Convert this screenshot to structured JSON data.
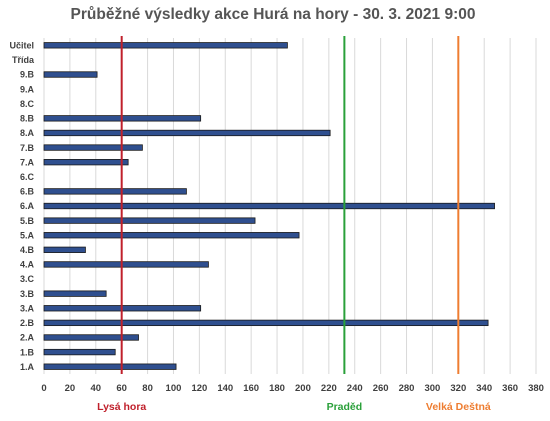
{
  "chart_data": {
    "type": "bar",
    "orientation": "horizontal",
    "title": "Průběžné výsledky akce Hurá na hory - 30. 3. 2021 9:00",
    "categories": [
      "Učitel",
      "Třída",
      "9.B",
      "9.A",
      "8.C",
      "8.B",
      "8.A",
      "7.B",
      "7.A",
      "6.C",
      "6.B",
      "6.A",
      "5.B",
      "5.A",
      "4.B",
      "4.A",
      "3.C",
      "3.B",
      "3.A",
      "2.B",
      "2.A",
      "1.B",
      "1.A"
    ],
    "values": [
      188,
      null,
      41,
      0,
      0,
      121,
      221,
      76,
      65,
      0,
      110,
      348,
      163,
      197,
      32,
      127,
      0,
      48,
      121,
      343,
      73,
      55,
      102
    ],
    "xlim": [
      0,
      380
    ],
    "xticks": [
      0,
      20,
      40,
      60,
      80,
      100,
      120,
      140,
      160,
      180,
      200,
      220,
      240,
      260,
      280,
      300,
      320,
      340,
      360,
      380
    ],
    "grid": true,
    "bar_color": "#2f4f8f",
    "reference_lines": [
      {
        "label": "Lysá hora",
        "value": 60,
        "color": "#c0202b"
      },
      {
        "label": "Praděd",
        "value": 232,
        "color": "#2aa03a"
      },
      {
        "label": "Velká Deštná",
        "value": 320,
        "color": "#ee7d31"
      }
    ]
  }
}
